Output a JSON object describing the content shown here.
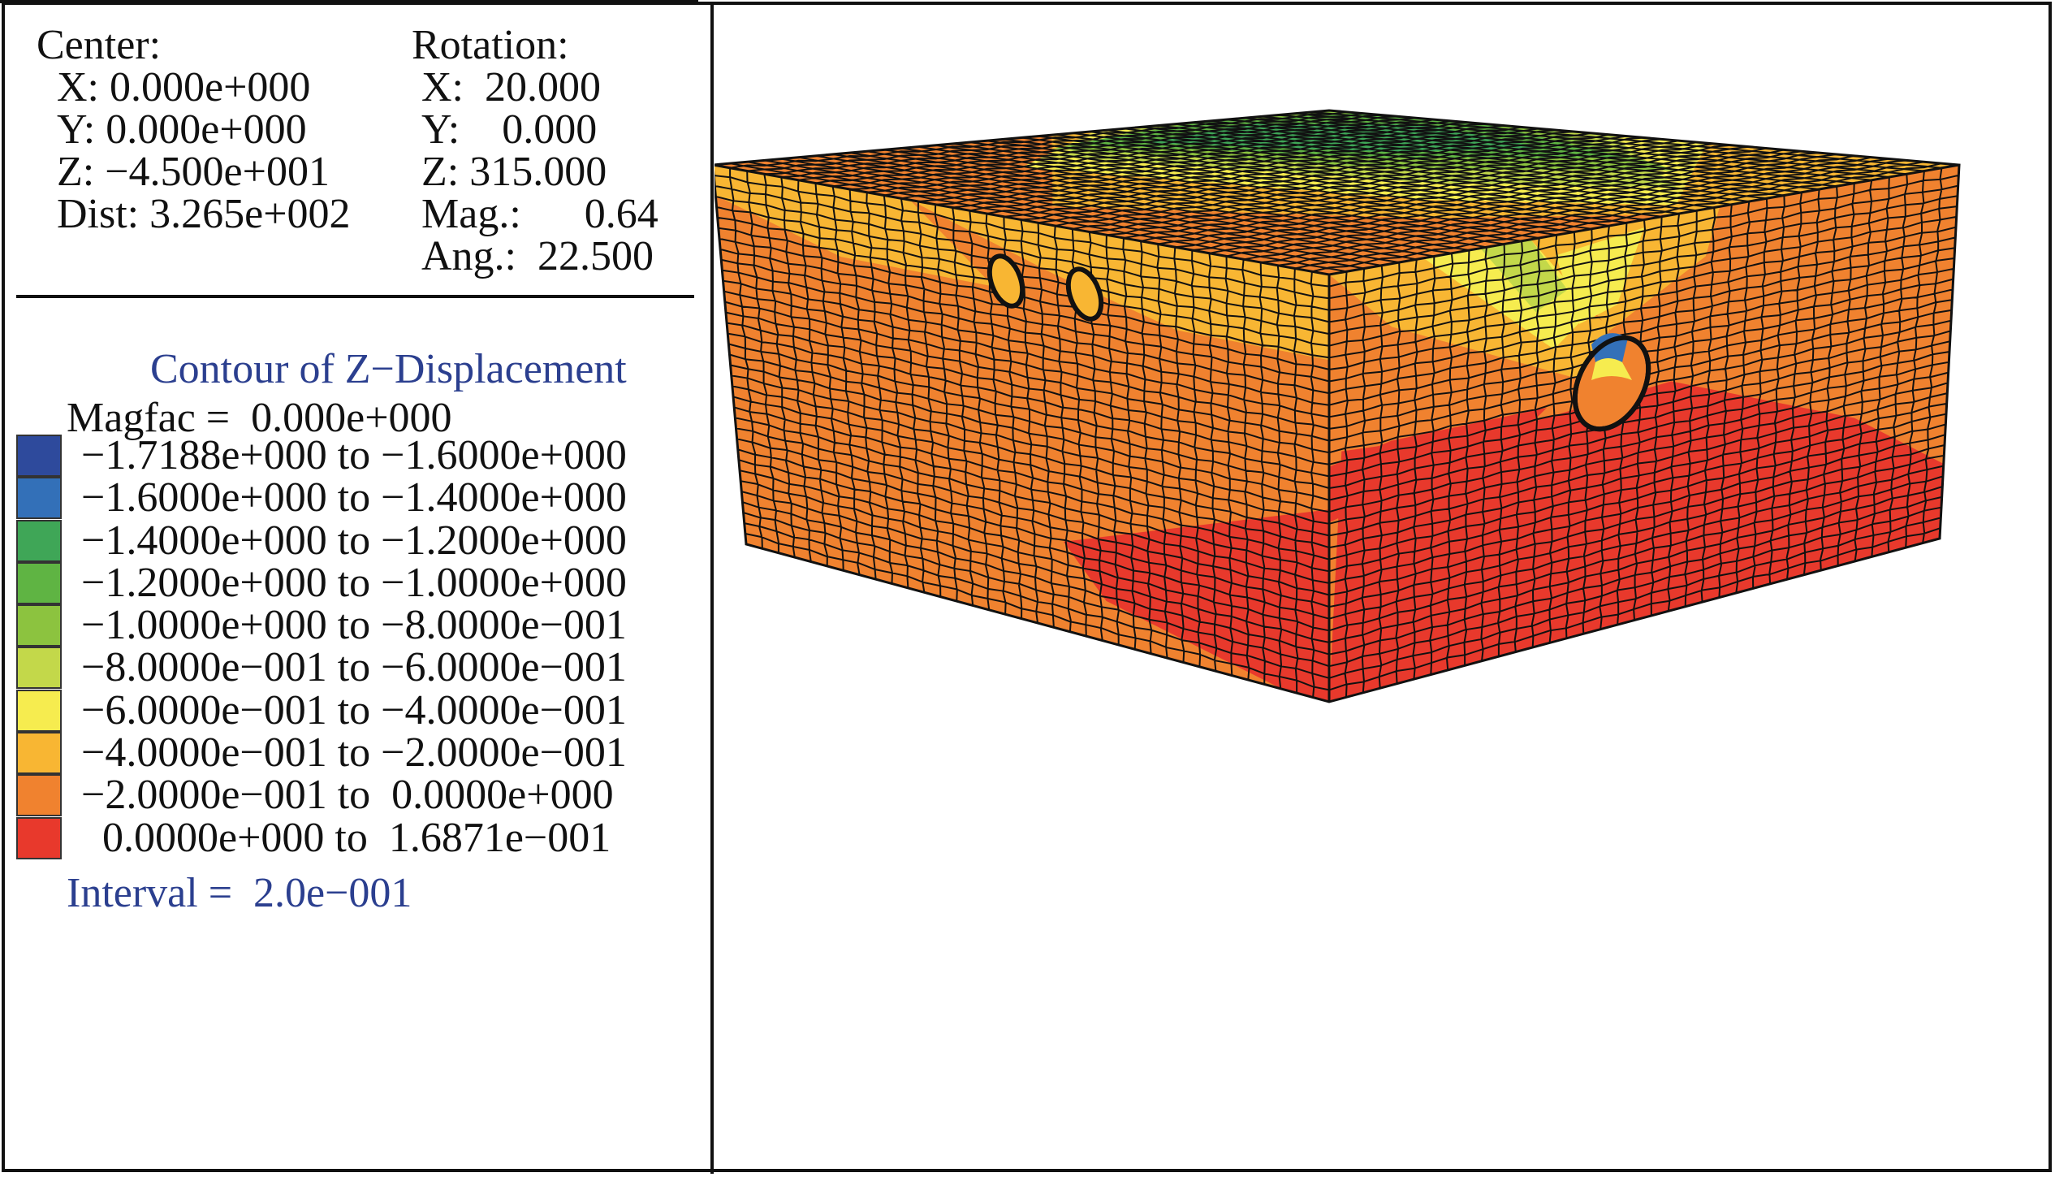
{
  "view": {
    "center_label": "Center:",
    "center": [
      {
        "label": "X:",
        "value": "0.000e+000"
      },
      {
        "label": "Y:",
        "value": "0.000e+000"
      },
      {
        "label": "Z:",
        "value": "−4.500e+001"
      },
      {
        "label": "Dist:",
        "value": "3.265e+002"
      }
    ],
    "rotation_label": "Rotation:",
    "rotation": [
      {
        "label": "X:",
        "value": "20.000"
      },
      {
        "label": "Y:",
        "value": "0.000"
      },
      {
        "label": "Z:",
        "value": "315.000"
      },
      {
        "label": "Mag.:",
        "value": "0.64"
      },
      {
        "label": "Ang.:",
        "value": "22.500"
      }
    ]
  },
  "legend": {
    "title": "Contour of Z−Displacement",
    "magfac_label": "Magfac =",
    "magfac_value": "0.000e+000",
    "entries": [
      {
        "from": "−1.7188e+000",
        "to": "−1.6000e+000",
        "color": "#2e4a9c"
      },
      {
        "from": "−1.6000e+000",
        "to": "−1.4000e+000",
        "color": "#3370b8"
      },
      {
        "from": "−1.4000e+000",
        "to": "−1.2000e+000",
        "color": "#3fa657"
      },
      {
        "from": "−1.2000e+000",
        "to": "−1.0000e+000",
        "color": "#5fb443"
      },
      {
        "from": "−1.0000e+000",
        "to": "−8.0000e−001",
        "color": "#8cc33f"
      },
      {
        "from": "−8.0000e−001",
        "to": "−6.0000e−001",
        "color": "#c3d84a"
      },
      {
        "from": "−6.0000e−001",
        "to": "−4.0000e−001",
        "color": "#f6ec4f"
      },
      {
        "from": "−4.0000e−001",
        "to": "−2.0000e−001",
        "color": "#f8b633"
      },
      {
        "from": "−2.0000e−001",
        "to": "0.0000e+000",
        "color": "#f0822f"
      },
      {
        "from": "0.0000e+000",
        "to": "1.6871e−001",
        "color": "#e8392c"
      }
    ],
    "to_word": "to",
    "interval_label": "Interval =",
    "interval_value": "2.0e−001"
  },
  "colors": {
    "title_blue": "#2b3f8f",
    "mesh_line": "#111111"
  }
}
